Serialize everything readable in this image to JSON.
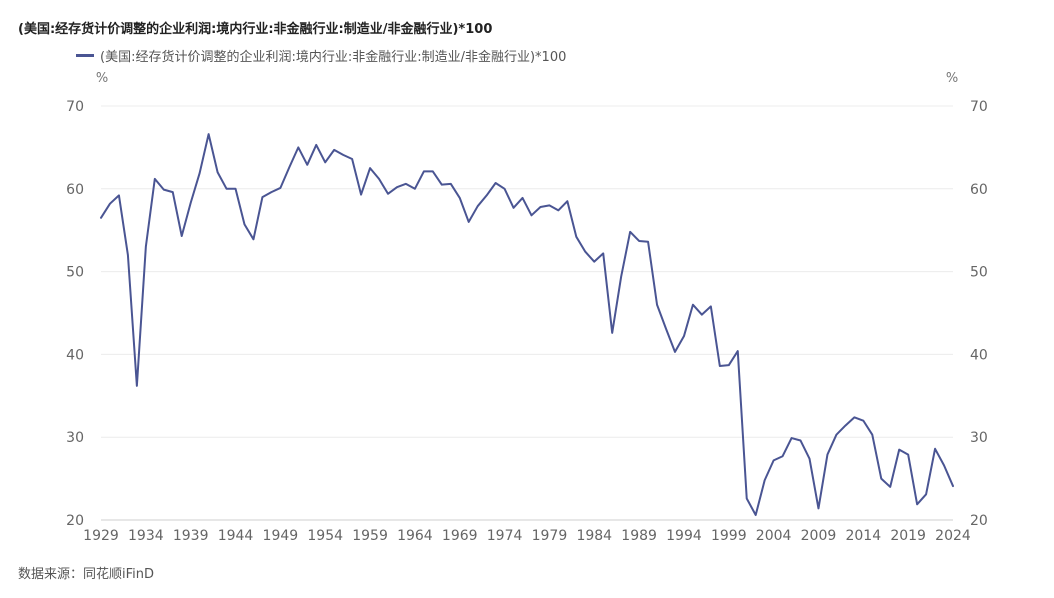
{
  "title": "(美国:经存货计价调整的企业利润:境内行业:非金融行业:制造业/非金融行业)*100",
  "source": "数据来源：同花顺iFinD",
  "chart_data": {
    "type": "line",
    "title": "(美国:经存货计价调整的企业利润:境内行业:非金融行业:制造业/非金融行业)*100",
    "ylabel_left": "%",
    "ylabel_right": "%",
    "ylim": [
      20,
      70
    ],
    "yticks": [
      20,
      30,
      40,
      50,
      60,
      70
    ],
    "xlim": [
      1929,
      2024
    ],
    "xticks": [
      1929,
      1934,
      1939,
      1944,
      1949,
      1954,
      1959,
      1964,
      1969,
      1974,
      1979,
      1984,
      1989,
      1994,
      1999,
      2004,
      2009,
      2014,
      2019,
      2024
    ],
    "grid": true,
    "legend_position": "top-left",
    "color": "#4a5593",
    "series": [
      {
        "name": "(美国:经存货计价调整的企业利润:境内行业:非金融行业:制造业/非金融行业)*100",
        "x": [
          1929,
          1930,
          1931,
          1932,
          1933,
          1934,
          1935,
          1936,
          1937,
          1938,
          1939,
          1940,
          1941,
          1942,
          1943,
          1944,
          1945,
          1946,
          1947,
          1948,
          1949,
          1950,
          1951,
          1952,
          1953,
          1954,
          1955,
          1956,
          1957,
          1958,
          1959,
          1960,
          1961,
          1962,
          1963,
          1964,
          1965,
          1966,
          1967,
          1968,
          1969,
          1970,
          1971,
          1972,
          1973,
          1974,
          1975,
          1976,
          1977,
          1978,
          1979,
          1980,
          1981,
          1982,
          1983,
          1984,
          1985,
          1986,
          1987,
          1988,
          1989,
          1990,
          1991,
          1992,
          1993,
          1994,
          1995,
          1996,
          1997,
          1998,
          1999,
          2000,
          2001,
          2002,
          2003,
          2004,
          2005,
          2006,
          2007,
          2008,
          2009,
          2010,
          2011,
          2012,
          2013,
          2014,
          2015,
          2016,
          2017,
          2018,
          2019,
          2020,
          2021,
          2022,
          2023,
          2024
        ],
        "values": [
          56.5,
          58.2,
          59.2,
          52.0,
          36.2,
          53.0,
          61.2,
          59.9,
          59.6,
          54.3,
          58.3,
          61.9,
          66.6,
          62.0,
          60.0,
          60.0,
          55.7,
          53.9,
          59.0,
          59.6,
          60.1,
          62.6,
          65.0,
          62.9,
          65.3,
          63.2,
          64.7,
          64.1,
          63.6,
          59.3,
          62.5,
          61.2,
          59.4,
          60.2,
          60.6,
          60.0,
          62.1,
          62.1,
          60.5,
          60.6,
          58.9,
          56.0,
          57.9,
          59.2,
          60.7,
          60.0,
          57.7,
          58.9,
          56.8,
          57.8,
          58.0,
          57.4,
          58.5,
          54.2,
          52.4,
          51.2,
          52.2,
          42.6,
          49.4,
          54.8,
          53.7,
          53.6,
          46.0,
          43.1,
          40.3,
          42.2,
          46.0,
          44.8,
          45.8,
          38.6,
          38.7,
          40.4,
          22.6,
          20.6,
          24.8,
          27.2,
          27.7,
          29.9,
          29.6,
          27.4,
          21.4,
          27.9,
          30.3,
          31.4,
          32.4,
          32.0,
          30.3,
          25.0,
          24.0,
          28.5,
          27.9,
          21.9,
          23.1,
          28.6,
          26.6,
          24.1
        ]
      }
    ]
  }
}
